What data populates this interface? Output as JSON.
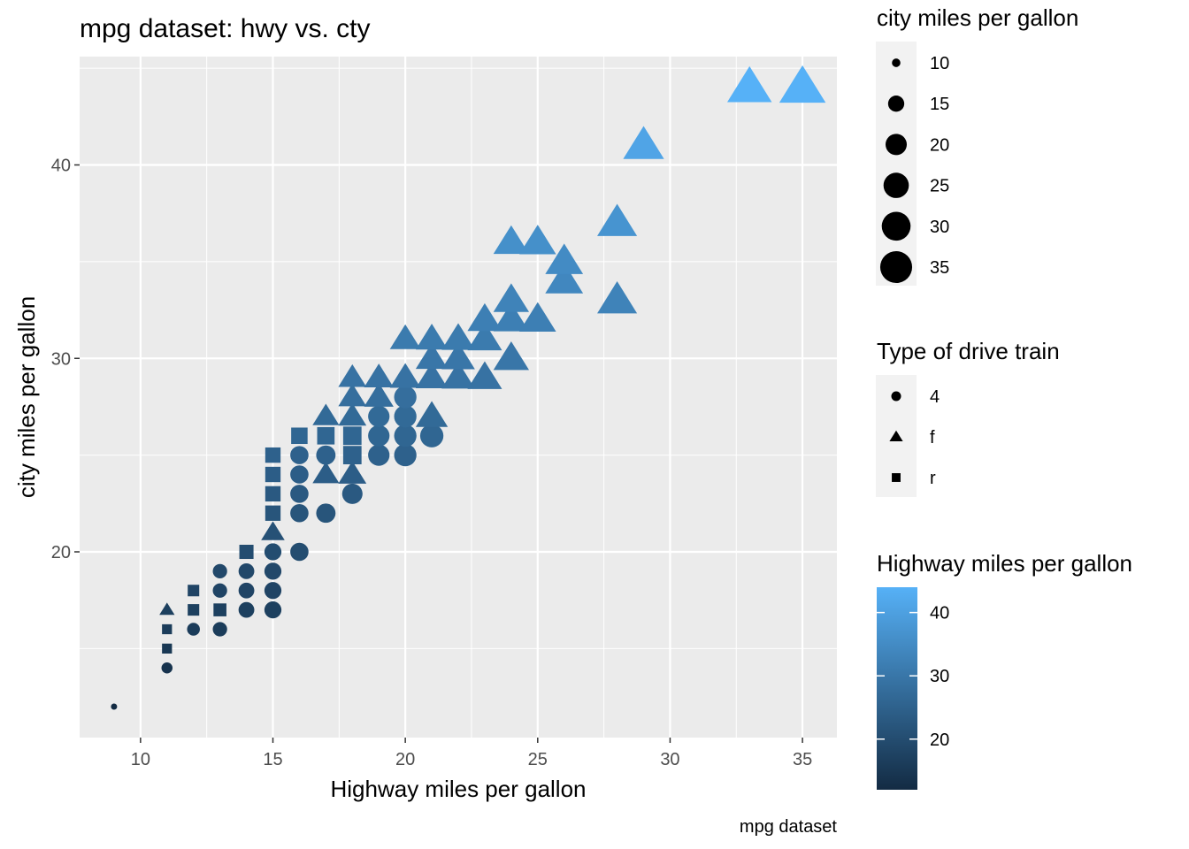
{
  "chart_data": {
    "type": "scatter",
    "title": "mpg dataset: hwy vs. cty",
    "xlabel": "Highway miles per gallon",
    "ylabel": "city miles per gallon",
    "caption": "mpg dataset",
    "xlim": [
      7.7,
      36.3
    ],
    "ylim": [
      10.4,
      45.6
    ],
    "x_ticks": [
      10,
      15,
      20,
      25,
      30,
      35
    ],
    "y_ticks": [
      20,
      30,
      40
    ],
    "grid": true,
    "panel_background": "#ebebeb",
    "grid_color": "#ffffff",
    "legend_position": "right",
    "note": "",
    "points": [
      {
        "x": 9,
        "y": 12,
        "drv": "4"
      },
      {
        "x": 11,
        "y": 14,
        "drv": "4"
      },
      {
        "x": 11,
        "y": 15,
        "drv": "r"
      },
      {
        "x": 11,
        "y": 16,
        "drv": "r"
      },
      {
        "x": 11,
        "y": 17,
        "drv": "f"
      },
      {
        "x": 12,
        "y": 16,
        "drv": "4"
      },
      {
        "x": 12,
        "y": 17,
        "drv": "r"
      },
      {
        "x": 12,
        "y": 18,
        "drv": "r"
      },
      {
        "x": 13,
        "y": 16,
        "drv": "4"
      },
      {
        "x": 13,
        "y": 17,
        "drv": "r"
      },
      {
        "x": 13,
        "y": 18,
        "drv": "4"
      },
      {
        "x": 13,
        "y": 19,
        "drv": "4"
      },
      {
        "x": 14,
        "y": 17,
        "drv": "4"
      },
      {
        "x": 14,
        "y": 18,
        "drv": "4"
      },
      {
        "x": 14,
        "y": 19,
        "drv": "4"
      },
      {
        "x": 14,
        "y": 20,
        "drv": "r"
      },
      {
        "x": 15,
        "y": 17,
        "drv": "4"
      },
      {
        "x": 15,
        "y": 18,
        "drv": "4"
      },
      {
        "x": 15,
        "y": 19,
        "drv": "4"
      },
      {
        "x": 15,
        "y": 20,
        "drv": "4"
      },
      {
        "x": 15,
        "y": 21,
        "drv": "f"
      },
      {
        "x": 15,
        "y": 22,
        "drv": "r"
      },
      {
        "x": 15,
        "y": 23,
        "drv": "r"
      },
      {
        "x": 15,
        "y": 24,
        "drv": "r"
      },
      {
        "x": 15,
        "y": 25,
        "drv": "r"
      },
      {
        "x": 16,
        "y": 20,
        "drv": "4"
      },
      {
        "x": 16,
        "y": 22,
        "drv": "4"
      },
      {
        "x": 16,
        "y": 23,
        "drv": "4"
      },
      {
        "x": 16,
        "y": 24,
        "drv": "4"
      },
      {
        "x": 16,
        "y": 25,
        "drv": "4"
      },
      {
        "x": 16,
        "y": 26,
        "drv": "r"
      },
      {
        "x": 17,
        "y": 22,
        "drv": "4"
      },
      {
        "x": 17,
        "y": 24,
        "drv": "f"
      },
      {
        "x": 17,
        "y": 25,
        "drv": "4"
      },
      {
        "x": 17,
        "y": 26,
        "drv": "r"
      },
      {
        "x": 17,
        "y": 27,
        "drv": "f"
      },
      {
        "x": 18,
        "y": 23,
        "drv": "4"
      },
      {
        "x": 18,
        "y": 24,
        "drv": "f"
      },
      {
        "x": 18,
        "y": 25,
        "drv": "r"
      },
      {
        "x": 18,
        "y": 26,
        "drv": "r"
      },
      {
        "x": 18,
        "y": 27,
        "drv": "f"
      },
      {
        "x": 18,
        "y": 28,
        "drv": "f"
      },
      {
        "x": 18,
        "y": 29,
        "drv": "f"
      },
      {
        "x": 19,
        "y": 25,
        "drv": "4"
      },
      {
        "x": 19,
        "y": 26,
        "drv": "4"
      },
      {
        "x": 19,
        "y": 27,
        "drv": "4"
      },
      {
        "x": 19,
        "y": 28,
        "drv": "f"
      },
      {
        "x": 19,
        "y": 29,
        "drv": "f"
      },
      {
        "x": 20,
        "y": 25,
        "drv": "4"
      },
      {
        "x": 20,
        "y": 26,
        "drv": "4"
      },
      {
        "x": 20,
        "y": 27,
        "drv": "4"
      },
      {
        "x": 20,
        "y": 28,
        "drv": "4"
      },
      {
        "x": 20,
        "y": 29,
        "drv": "f"
      },
      {
        "x": 20,
        "y": 31,
        "drv": "f"
      },
      {
        "x": 21,
        "y": 26,
        "drv": "4"
      },
      {
        "x": 21,
        "y": 27,
        "drv": "f"
      },
      {
        "x": 21,
        "y": 29,
        "drv": "f"
      },
      {
        "x": 21,
        "y": 30,
        "drv": "f"
      },
      {
        "x": 21,
        "y": 31,
        "drv": "f"
      },
      {
        "x": 22,
        "y": 29,
        "drv": "f"
      },
      {
        "x": 22,
        "y": 30,
        "drv": "f"
      },
      {
        "x": 22,
        "y": 31,
        "drv": "f"
      },
      {
        "x": 23,
        "y": 29,
        "drv": "f"
      },
      {
        "x": 23,
        "y": 31,
        "drv": "f"
      },
      {
        "x": 23,
        "y": 32,
        "drv": "f"
      },
      {
        "x": 24,
        "y": 30,
        "drv": "f"
      },
      {
        "x": 24,
        "y": 32,
        "drv": "f"
      },
      {
        "x": 24,
        "y": 33,
        "drv": "f"
      },
      {
        "x": 24,
        "y": 36,
        "drv": "f"
      },
      {
        "x": 25,
        "y": 32,
        "drv": "f"
      },
      {
        "x": 25,
        "y": 36,
        "drv": "f"
      },
      {
        "x": 26,
        "y": 34,
        "drv": "f"
      },
      {
        "x": 26,
        "y": 35,
        "drv": "f"
      },
      {
        "x": 28,
        "y": 33,
        "drv": "f"
      },
      {
        "x": 28,
        "y": 37,
        "drv": "f"
      },
      {
        "x": 29,
        "y": 41,
        "drv": "f"
      },
      {
        "x": 33,
        "y": 44,
        "drv": "f"
      },
      {
        "x": 35,
        "y": 44,
        "drv": "f"
      }
    ],
    "legends": {
      "size": {
        "title": "city miles per gallon",
        "items": [
          {
            "label": "10",
            "value": 10
          },
          {
            "label": "15",
            "value": 15
          },
          {
            "label": "20",
            "value": 20
          },
          {
            "label": "25",
            "value": 25
          },
          {
            "label": "30",
            "value": 30
          },
          {
            "label": "35",
            "value": 35
          }
        ]
      },
      "shape": {
        "title": "Type of drive train",
        "items": [
          {
            "label": "4",
            "shape": "circle"
          },
          {
            "label": "f",
            "shape": "triangle"
          },
          {
            "label": "r",
            "shape": "square"
          }
        ]
      },
      "color": {
        "title": "Highway miles per gallon",
        "low_color": "#132b43",
        "high_color": "#56b1f7",
        "range": [
          12,
          44
        ],
        "ticks": [
          20,
          30,
          40
        ]
      }
    }
  }
}
